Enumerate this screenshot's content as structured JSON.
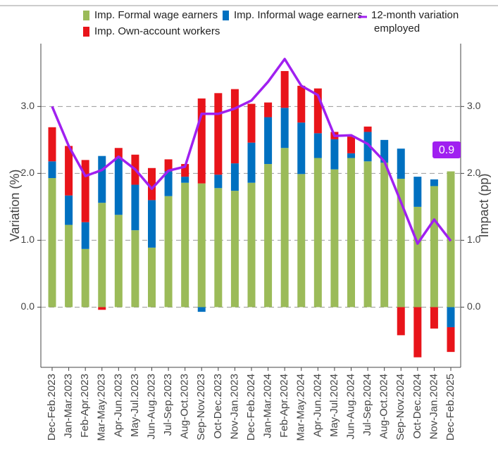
{
  "chart_data": {
    "type": "bar-line",
    "ylabel": "Variation (%)",
    "y2label": "Impact (pp)",
    "categories": [
      "Dec-Feb.2023",
      "Jan-Mar.2023",
      "Feb-Apr.2023",
      "Mar-May.2023",
      "Apr-Jun.2023",
      "May-Jul.2023",
      "Jun-Aug.2023",
      "Jul-Sep.2023",
      "Aug-Oct.2023",
      "Sep-Nov.2023",
      "Oct-Dec.2023",
      "Nov-Jan.2023",
      "Dec-Feb.2024",
      "Jan-Mar.2024",
      "Feb-Apr.2024",
      "Mar-May.2024",
      "Apr-Jun.2024",
      "May-Jul.2024",
      "Jun-Aug.2024",
      "Jul-Sep.2024",
      "Aug-Oct.2024",
      "Sep-Nov.2024",
      "Oct-Dec.2024",
      "Nov-Jan.2024",
      "Dec-Feb.2025"
    ],
    "series": [
      {
        "name": "Imp. Formal wage earners",
        "type": "bar",
        "axis": "y2",
        "color": "#9bbb59",
        "values": [
          1.93,
          1.23,
          0.87,
          1.56,
          1.38,
          1.15,
          0.89,
          1.66,
          1.86,
          1.85,
          1.78,
          1.74,
          1.86,
          2.14,
          2.38,
          1.99,
          2.23,
          2.06,
          2.23,
          2.18,
          2.16,
          1.92,
          1.5,
          1.81,
          2.03
        ]
      },
      {
        "name": "Imp. Informal wage earners",
        "type": "bar",
        "axis": "y2",
        "color": "#0070c0",
        "values": [
          0.25,
          0.44,
          0.4,
          0.7,
          0.85,
          0.68,
          0.71,
          0.37,
          0.09,
          -0.07,
          0.2,
          0.41,
          0.6,
          0.7,
          0.6,
          0.77,
          0.37,
          0.45,
          0.07,
          0.44,
          0.34,
          0.45,
          0.45,
          0.1,
          -0.3
        ]
      },
      {
        "name": "Imp. Own-account workers",
        "type": "bar",
        "axis": "y2",
        "color": "#e8141a",
        "values": [
          0.51,
          0.74,
          0.93,
          -0.04,
          0.15,
          0.45,
          0.48,
          0.18,
          0.19,
          1.27,
          1.22,
          1.11,
          0.58,
          0.22,
          0.55,
          0.55,
          0.67,
          0.11,
          0.25,
          0.08,
          0,
          -0.42,
          -0.75,
          -0.32,
          -0.37
        ]
      },
      {
        "name": "12-month variation employed",
        "type": "line",
        "color": "#a020f0",
        "values": [
          3.0,
          2.41,
          1.96,
          2.05,
          2.25,
          2.06,
          1.77,
          2.04,
          2.1,
          2.89,
          2.89,
          2.97,
          3.09,
          3.37,
          3.71,
          3.31,
          3.17,
          2.56,
          2.57,
          2.44,
          2.18,
          1.57,
          0.95,
          1.31,
          0.99
        ]
      }
    ],
    "annotation": "0.9",
    "ylim": [
      -0.9,
      3.94
    ],
    "yticks": [
      {
        "value": 0,
        "label": "0.0"
      },
      {
        "value": 1,
        "label": "1.0"
      },
      {
        "value": 2,
        "label": "2.0"
      },
      {
        "value": 3,
        "label": "3.0"
      }
    ],
    "y2lim": [
      -0.9,
      3.94
    ],
    "y2ticks": [
      {
        "value": 0,
        "label": "0.0"
      },
      {
        "value": 1,
        "label": "1.0"
      },
      {
        "value": 2,
        "label": "2.0"
      },
      {
        "value": 3,
        "label": "3.0"
      }
    ],
    "grid": true
  }
}
